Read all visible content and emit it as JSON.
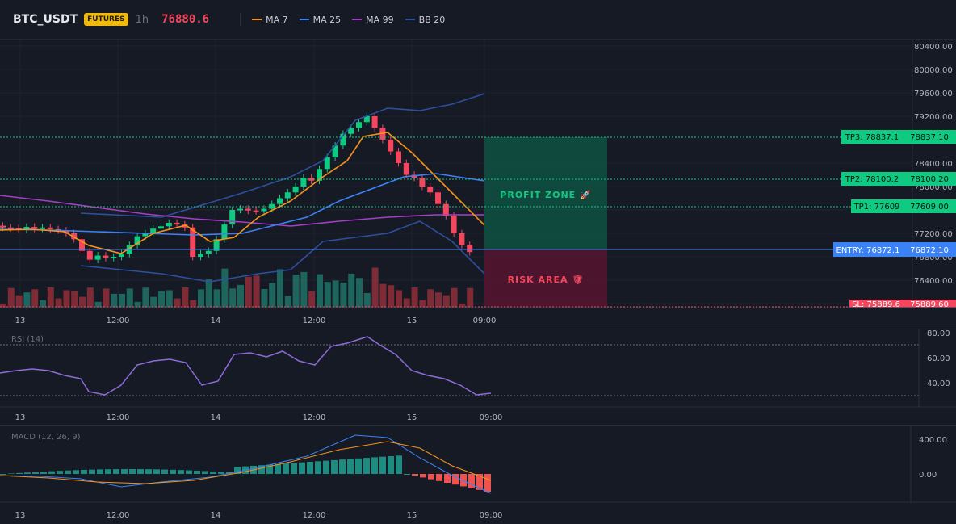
{
  "header": {
    "symbol": "BTC_USDT",
    "badge": "FUTURES",
    "timeframe": "1h",
    "price": "76880.6",
    "legend": [
      {
        "label": "MA 7",
        "color": "#f7931a"
      },
      {
        "label": "MA 25",
        "color": "#3b82f6"
      },
      {
        "label": "MA 99",
        "color": "#a53fc6"
      },
      {
        "label": "BB 20",
        "color": "#2c4f9e"
      }
    ]
  },
  "price_axis": [
    "80400.00",
    "80000.00",
    "79600.00",
    "79200.00",
    "78800.00",
    "78400.00",
    "78000.00",
    "77600.00",
    "77200.00",
    "76800.00",
    "76400.00",
    "76000.00"
  ],
  "levels": {
    "tp3": {
      "tag": "TP3: 78837.1",
      "axis": "78837.10",
      "value": 78837.1
    },
    "tp2": {
      "tag": "TP2: 78100.2",
      "axis": "78100.20",
      "value": 78100.2
    },
    "tp1": {
      "tag": "TP1: 77609",
      "axis": "77609.00",
      "value": 77609
    },
    "entry": {
      "tag": "ENTRY: 76872.1",
      "axis": "76872.10",
      "value": 76872.1
    },
    "sl": {
      "tag": "SL: 75889.6",
      "axis": "75889.60",
      "value": 75889.6
    }
  },
  "zones": {
    "profit": "PROFIT ZONE 🚀",
    "risk": "RISK AREA 🛡"
  },
  "time_axis": [
    "13",
    "12:00",
    "14",
    "12:00",
    "15",
    "09:00"
  ],
  "rsi": {
    "label": "RSI (14)",
    "axis": [
      "80.00",
      "60.00",
      "40.00"
    ],
    "upper": 70,
    "lower": 30
  },
  "macd": {
    "label": "MACD (12, 26, 9)",
    "axis": [
      "400.00",
      "0.00"
    ]
  },
  "colors": {
    "up": "#26a69a",
    "down": "#ef5350",
    "candle_up": "#0ecb81",
    "candle_down": "#f6465d",
    "bg": "#161a25"
  }
}
